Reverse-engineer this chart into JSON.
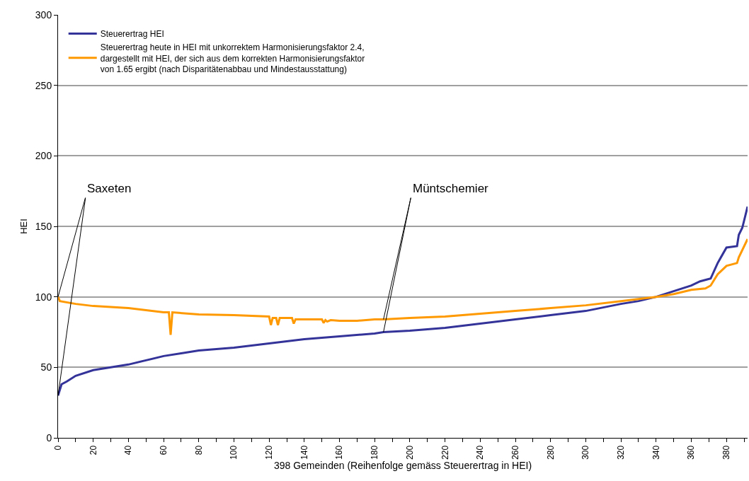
{
  "chart_data": {
    "type": "line",
    "xlabel": "398 Gemeinden (Reihenfolge gemäss Steuerertrag in HEI)",
    "ylabel": "HEI",
    "xlim": [
      0,
      392
    ],
    "ylim": [
      0,
      300
    ],
    "yticks": [
      0,
      50,
      100,
      150,
      200,
      250,
      300
    ],
    "xticks": [
      0,
      {
        "value": 10,
        "label": null
      },
      20,
      {
        "value": 30,
        "label": null
      },
      40,
      {
        "value": 50,
        "label": null
      },
      60,
      {
        "value": 70,
        "label": null
      },
      80,
      {
        "value": 90,
        "label": null
      },
      100,
      {
        "value": 110,
        "label": null
      },
      120,
      {
        "value": 130,
        "label": null
      },
      140,
      {
        "value": 150,
        "label": null
      },
      160,
      {
        "value": 170,
        "label": null
      },
      180,
      {
        "value": 190,
        "label": null
      },
      200,
      {
        "value": 210,
        "label": null
      },
      220,
      {
        "value": 230,
        "label": null
      },
      240,
      {
        "value": 250,
        "label": null
      },
      260,
      {
        "value": 270,
        "label": null
      },
      280,
      {
        "value": 290,
        "label": null
      },
      300,
      {
        "value": 310,
        "label": null
      },
      320,
      {
        "value": 330,
        "label": null
      },
      340,
      {
        "value": 350,
        "label": null
      },
      360,
      {
        "value": 370,
        "label": null
      },
      380,
      {
        "value": 390,
        "label": null
      }
    ],
    "grid": "y",
    "legend": "top left",
    "series": [
      {
        "name": "Steuerertrag HEI",
        "color": "#333399",
        "x": [
          0,
          2,
          5,
          10,
          20,
          30,
          40,
          50,
          60,
          70,
          80,
          100,
          120,
          140,
          160,
          180,
          185,
          200,
          220,
          240,
          260,
          280,
          300,
          320,
          330,
          340,
          350,
          360,
          365,
          371,
          375,
          380,
          386,
          387,
          389,
          392
        ],
        "values": [
          30,
          38,
          40,
          44,
          48,
          50,
          52,
          55,
          58,
          60,
          62,
          64,
          67,
          70,
          72,
          74,
          75,
          76,
          78,
          81,
          84,
          87,
          90,
          95,
          97,
          100,
          104,
          108,
          111,
          113,
          124,
          135,
          136,
          144,
          149,
          164
        ]
      },
      {
        "name": "Steuerertrag heute in HEI mit unkorrektem Harmonisierungsfaktor 2.4, dargestellt mit HEI, der sich aus dem korrekten Harmonisierungsfaktor von 1.65 ergibt (nach Disparitätenabbau und Mindestausstattung)",
        "color": "#ff9900",
        "x": [
          0,
          1,
          10,
          20,
          40,
          60,
          63,
          64,
          65,
          80,
          100,
          120,
          121,
          122,
          124,
          125,
          126,
          133,
          134,
          135,
          150,
          151,
          152,
          153,
          155,
          160,
          170,
          180,
          185,
          200,
          220,
          240,
          260,
          280,
          300,
          320,
          340,
          350,
          360,
          368,
          371,
          375,
          380,
          386,
          387,
          392
        ],
        "values": [
          100,
          97,
          95,
          93.5,
          92,
          89,
          89,
          73,
          89,
          87.5,
          87,
          86,
          80,
          85,
          85,
          80,
          85,
          85,
          81,
          84,
          84,
          81.5,
          83.5,
          82.5,
          83.5,
          83,
          83,
          84,
          84,
          85,
          86,
          88,
          90,
          92,
          94,
          97,
          100,
          102,
          105,
          106,
          108,
          116,
          122,
          124,
          128,
          141
        ]
      }
    ],
    "annotations": [
      {
        "text": "Saxeten",
        "x": 0,
        "y": 100
      },
      {
        "text": "Müntschemier",
        "x": 185,
        "y": 84
      }
    ]
  }
}
